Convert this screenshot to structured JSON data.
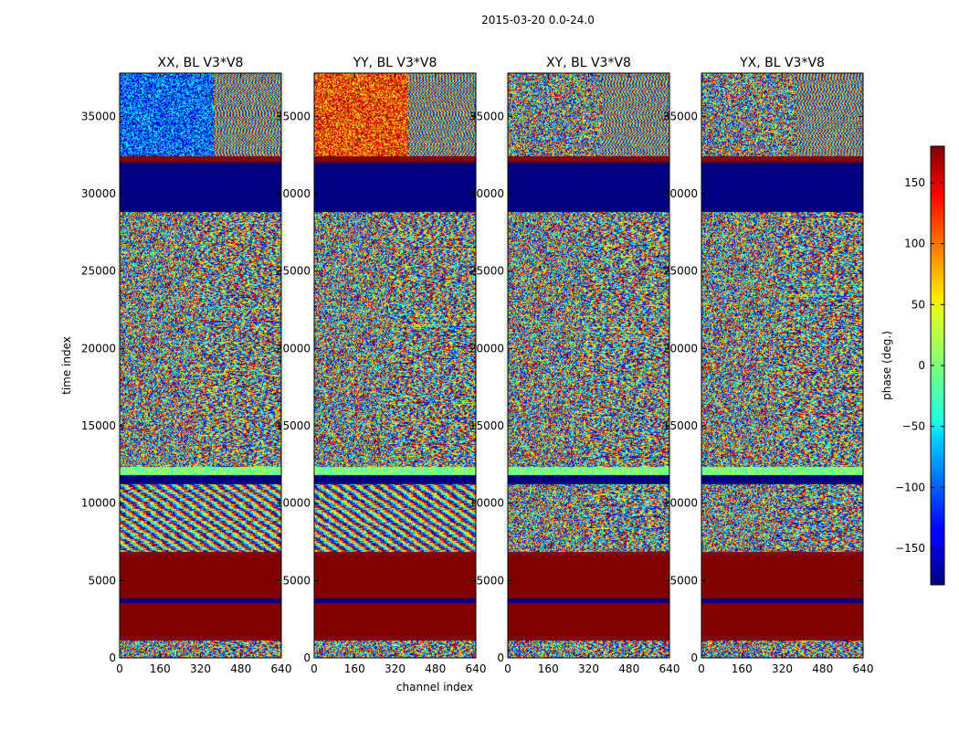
{
  "figure": {
    "suptitle": "2015-03-20 0.0-24.0",
    "xlabel": "channel index",
    "ylabel": "time index",
    "colorbar_label": "phase (deg.)"
  },
  "chart_data": {
    "type": "heatmap",
    "x_range": [
      0,
      640
    ],
    "y_range": [
      0,
      37800
    ],
    "x_ticks": [
      0,
      160,
      320,
      480,
      640
    ],
    "y_ticks": [
      0,
      5000,
      10000,
      15000,
      20000,
      25000,
      30000,
      35000
    ],
    "colorbar": {
      "range": [
        -180,
        180
      ],
      "ticks": [
        -150,
        -100,
        -50,
        0,
        50,
        100,
        150
      ],
      "tick_labels": [
        "−150",
        "−100",
        "−50",
        "0",
        "50",
        "100",
        "150"
      ],
      "colormap": "jet"
    },
    "panels": [
      {
        "title": "XX, BL V3*V8",
        "pol": "XX"
      },
      {
        "title": "YY, BL V3*V8",
        "pol": "YY"
      },
      {
        "title": "XY, BL V3*V8",
        "pol": "XY"
      },
      {
        "title": "YX, BL V3*V8",
        "pol": "YX"
      }
    ],
    "time_bands": [
      {
        "from": 0,
        "to": 1100,
        "kind": "noise"
      },
      {
        "from": 1100,
        "to": 3500,
        "kind": "const",
        "value": 180
      },
      {
        "from": 3500,
        "to": 3800,
        "kind": "const",
        "value": -180
      },
      {
        "from": 3800,
        "to": 6800,
        "kind": "const",
        "value": 180
      },
      {
        "from": 6800,
        "to": 11200,
        "kind": "fringe"
      },
      {
        "from": 11200,
        "to": 11800,
        "kind": "const",
        "value": -180
      },
      {
        "from": 11800,
        "to": 12300,
        "kind": "stripe"
      },
      {
        "from": 12300,
        "to": 23500,
        "kind": "noise"
      },
      {
        "from": 23500,
        "to": 28800,
        "kind": "noise"
      },
      {
        "from": 28800,
        "to": 32000,
        "kind": "const",
        "value": -180
      },
      {
        "from": 32000,
        "to": 32400,
        "kind": "const",
        "value": 180
      },
      {
        "from": 32400,
        "to": 37800,
        "kind": "drift"
      }
    ]
  }
}
